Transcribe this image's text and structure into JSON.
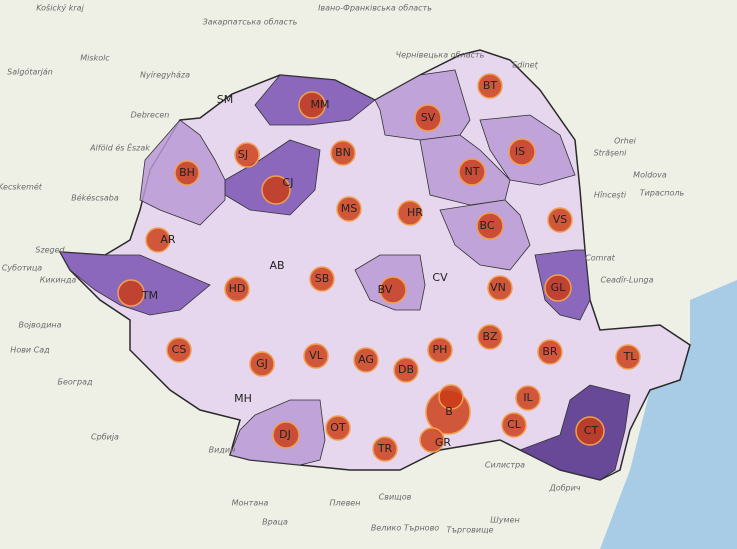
{
  "map": {
    "counties": [
      "MM",
      "SJ",
      "BN",
      "SV",
      "BT",
      "IS",
      "NT",
      "BH",
      "CJ",
      "MS",
      "HR",
      "BC",
      "VS",
      "AR",
      "SB",
      "BV",
      "VN",
      "GL",
      "TM",
      "HD",
      "BZ",
      "BR",
      "TL",
      "CS",
      "GJ",
      "VL",
      "AG",
      "DB",
      "PH",
      "IL",
      "DJ",
      "OT",
      "TR",
      "B",
      "CL",
      "CT",
      "GR"
    ],
    "unmarked_counties": [
      "SM",
      "AB",
      "CV",
      "MH"
    ],
    "places": [
      "Košický kraj",
      "Закарпатська область",
      "Івано-Франківська область",
      "Чернівецька область",
      "Salgótarján",
      "Miskolc",
      "Nyíregyháza",
      "Debrecen",
      "Alföld és Észak",
      "Kecskemét",
      "Békéscsaba",
      "Szeged",
      "Суботица",
      "Кикинда",
      "Војводина",
      "Нови Сад",
      "Београд",
      "Србија",
      "Edineț",
      "Orhei",
      "Strășeni",
      "Moldova",
      "Hîncești",
      "Тирасполь",
      "Comrat",
      "Ceadîr-Lunga",
      "Видин",
      "Монтана",
      "Враца",
      "Плевен",
      "Свищов",
      "Велико Търново",
      "Търговище",
      "Шумен",
      "Силистра",
      "Добрич"
    ]
  }
}
